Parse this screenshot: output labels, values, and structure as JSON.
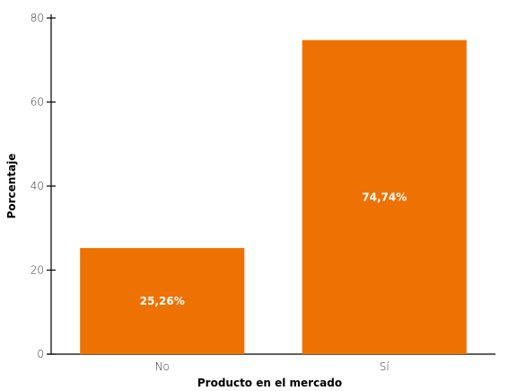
{
  "chart_data": {
    "type": "bar",
    "categories": [
      "No",
      "Sí"
    ],
    "values": [
      25.26,
      74.74
    ],
    "data_labels": [
      "25,26%",
      "74,74%"
    ],
    "xlabel": "Producto en el mercado",
    "ylabel": "Porcentaje",
    "ylim": [
      0,
      80
    ],
    "yticks": [
      0,
      20,
      40,
      60,
      80
    ],
    "grid": false,
    "bar_color": "#ee7203",
    "label_color": "#ffffff"
  }
}
